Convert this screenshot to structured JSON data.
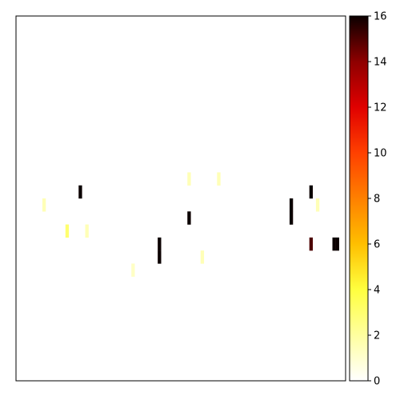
{
  "chart_data": {
    "type": "heatmap",
    "title": "",
    "xlabel": "",
    "ylabel": "",
    "x_ticks_visible": false,
    "y_ticks_visible": false,
    "grid": false,
    "colormap": "hot_r",
    "colorbar": {
      "location": "right",
      "range": [
        0,
        16
      ],
      "ticks": [
        0,
        2,
        4,
        6,
        8,
        10,
        12,
        14,
        16
      ],
      "tick_labels": [
        "0",
        "2",
        "4",
        "6",
        "8",
        "10",
        "12",
        "14",
        "16"
      ]
    },
    "grid_shape": {
      "columns": 100,
      "rows": 28
    },
    "cells": [
      {
        "col": 8,
        "row": 14,
        "value": 1.5
      },
      {
        "col": 15,
        "row": 16,
        "value": 3
      },
      {
        "col": 19,
        "row": 13,
        "value": 16
      },
      {
        "col": 21,
        "row": 16,
        "value": 1.5
      },
      {
        "col": 35,
        "row": 19,
        "value": 1.2
      },
      {
        "col": 43,
        "row": 17,
        "value": 16
      },
      {
        "col": 43,
        "row": 18,
        "value": 16
      },
      {
        "col": 52,
        "row": 12,
        "value": 1.5
      },
      {
        "col": 52,
        "row": 15,
        "value": 16
      },
      {
        "col": 56,
        "row": 18,
        "value": 1.5
      },
      {
        "col": 61,
        "row": 12,
        "value": 1.5
      },
      {
        "col": 83,
        "row": 14,
        "value": 16
      },
      {
        "col": 83,
        "row": 15,
        "value": 16
      },
      {
        "col": 89,
        "row": 13,
        "value": 16
      },
      {
        "col": 89,
        "row": 17,
        "value": 15
      },
      {
        "col": 91,
        "row": 14,
        "value": 1.5
      },
      {
        "col": 96,
        "row": 17,
        "value": 16
      },
      {
        "col": 97,
        "row": 17,
        "value": 16
      }
    ]
  }
}
